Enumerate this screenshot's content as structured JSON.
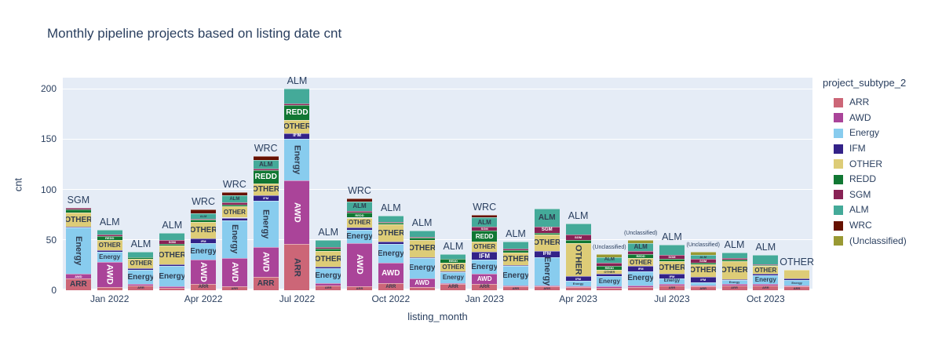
{
  "chart_data": {
    "type": "bar",
    "stacked": true,
    "title": "Monthly pipeline projects based on listing date cnt",
    "xlabel": "listing_month",
    "ylabel": "cnt",
    "ylim": [
      0,
      211
    ],
    "grid": true,
    "legend_position": "right",
    "legend_title": "project_subtype_2",
    "yticks": [
      0,
      50,
      100,
      150,
      200
    ],
    "xticks": [
      "Jan 2022",
      "Apr 2022",
      "Jul 2022",
      "Oct 2022",
      "Jan 2023",
      "Apr 2023",
      "Jul 2023",
      "Oct 2023"
    ],
    "series_keys": [
      "ARR",
      "AWD",
      "Energy",
      "IFM",
      "OTHER",
      "REDD",
      "SGM",
      "ALM",
      "WRC",
      "UNC"
    ],
    "series_meta": {
      "ARR": {
        "label": "ARR",
        "color": "#CC6677",
        "text_color": "#303c50"
      },
      "AWD": {
        "label": "AWD",
        "color": "#AA4499",
        "text_color": "#ffffff"
      },
      "Energy": {
        "label": "Energy",
        "color": "#88CCEE",
        "text_color": "#303c50"
      },
      "IFM": {
        "label": "IFM",
        "color": "#332288",
        "text_color": "#ffffff"
      },
      "OTHER": {
        "label": "OTHER",
        "color": "#DDCC77",
        "text_color": "#303c50"
      },
      "REDD": {
        "label": "REDD",
        "color": "#117733",
        "text_color": "#ffffff"
      },
      "SGM": {
        "label": "SGM",
        "color": "#882255",
        "text_color": "#ffffff"
      },
      "ALM": {
        "label": "ALM",
        "color": "#44AA99",
        "text_color": "#303c50"
      },
      "WRC": {
        "label": "WRC",
        "color": "#661100",
        "text_color": "#ffffff"
      },
      "UNC": {
        "label": "(Unclassified)",
        "color": "#999933",
        "text_color": "#303c50"
      }
    },
    "categories": [
      "Dec 2021",
      "Jan 2022",
      "Feb 2022",
      "Mar 2022",
      "Apr 2022",
      "May 2022",
      "Jun 2022",
      "Jul 2022",
      "Aug 2022",
      "Sep 2022",
      "Oct 2022",
      "Nov 2022",
      "Dec 2022",
      "Jan 2023",
      "Feb 2023",
      "Mar 2023",
      "Apr 2023",
      "May 2023",
      "Jun 2023",
      "Jul 2023",
      "Aug 2023",
      "Sep 2023",
      "Oct 2023",
      "Nov 2023"
    ],
    "bars": [
      {
        "month": "Dec 2021",
        "top_label": "SGM",
        "values": {
          "ARR": 12,
          "AWD": 4,
          "Energy": 46,
          "IFM": 1,
          "OTHER": 14,
          "REDD": 3,
          "SGM": 2
        }
      },
      {
        "month": "Jan 2022",
        "top_label": "ALM",
        "values": {
          "ARR": 3,
          "AWD": 25,
          "Energy": 10,
          "IFM": 2,
          "OTHER": 10,
          "REDD": 4,
          "SGM": 1,
          "ALM": 5
        }
      },
      {
        "month": "Feb 2022",
        "top_label": "ALM",
        "values": {
          "ARR": 5,
          "AWD": 1,
          "Energy": 14,
          "IFM": 2,
          "OTHER": 9,
          "REDD": 2,
          "ALM": 5
        }
      },
      {
        "month": "Mar 2022",
        "top_label": "ALM",
        "values": {
          "ARR": 2,
          "AWD": 2,
          "Energy": 20,
          "IFM": 2,
          "OTHER": 18,
          "REDD": 2,
          "SGM": 4,
          "ALM": 7
        }
      },
      {
        "month": "Apr 2022",
        "top_label": "WRC",
        "values": {
          "ARR": 6,
          "AWD": 24,
          "Energy": 17,
          "IFM": 4,
          "OTHER": 17,
          "REDD": 2,
          "SGM": 1,
          "ALM": 5,
          "WRC": 4
        }
      },
      {
        "month": "May 2022",
        "top_label": "WRC",
        "values": {
          "ARR": 4,
          "AWD": 28,
          "Energy": 37,
          "IFM": 3,
          "OTHER": 11,
          "REDD": 2,
          "SGM": 2,
          "ALM": 7,
          "WRC": 3
        }
      },
      {
        "month": "Jun 2022",
        "top_label": "WRC",
        "values": {
          "ARR": 13,
          "AWD": 30,
          "Energy": 46,
          "IFM": 5,
          "OTHER": 12,
          "REDD": 13,
          "SGM": 2,
          "ALM": 8,
          "WRC": 4
        }
      },
      {
        "month": "Jul 2022",
        "top_label": "ALM",
        "values": {
          "ARR": 46,
          "AWD": 63,
          "Energy": 41,
          "IFM": 6,
          "OTHER": 13,
          "REDD": 15,
          "SGM": 1,
          "ALM": 15
        }
      },
      {
        "month": "Aug 2022",
        "top_label": "ALM",
        "values": {
          "ARR": 5,
          "AWD": 2,
          "Energy": 15,
          "IFM": 1,
          "OTHER": 16,
          "REDD": 2,
          "SGM": 2,
          "ALM": 7
        }
      },
      {
        "month": "Sep 2022",
        "top_label": "WRC",
        "values": {
          "ARR": 4,
          "AWD": 43,
          "Energy": 13,
          "IFM": 2,
          "OTHER": 10,
          "REDD": 5,
          "SGM": 2,
          "ALM": 9,
          "WRC": 3
        }
      },
      {
        "month": "Oct 2022",
        "top_label": "ALM",
        "values": {
          "ARR": 7,
          "AWD": 20,
          "Energy": 19,
          "IFM": 2,
          "OTHER": 17,
          "REDD": 2,
          "SGM": 1,
          "ALM": 6
        }
      },
      {
        "month": "Nov 2022",
        "top_label": "ALM",
        "values": {
          "ARR": 3,
          "AWD": 9,
          "Energy": 20,
          "IFM": 1,
          "OTHER": 17,
          "REDD": 2,
          "SGM": 1,
          "ALM": 6
        }
      },
      {
        "month": "Dec 2022",
        "top_label": "ALM",
        "values": {
          "ARR": 6,
          "AWD": 1,
          "Energy": 11,
          "IFM": 1,
          "OTHER": 8,
          "REDD": 4,
          "ALM": 5
        }
      },
      {
        "month": "Jan 2023",
        "top_label": "WRC",
        "values": {
          "ARR": 6,
          "AWD": 10,
          "Energy": 14,
          "IFM": 8,
          "OTHER": 10,
          "REDD": 11,
          "SGM": 4,
          "ALM": 9,
          "WRC": 3
        }
      },
      {
        "month": "Feb 2023",
        "top_label": "ALM",
        "values": {
          "ARR": 4,
          "AWD": 1,
          "Energy": 19,
          "IFM": 1,
          "OTHER": 12,
          "REDD": 3,
          "SGM": 1,
          "ALM": 7
        }
      },
      {
        "month": "Mar 2023",
        "top_label": null,
        "values": {
          "ARR": 4,
          "AWD": 1,
          "Energy": 28,
          "IFM": 6,
          "OTHER": 16,
          "REDD": 2,
          "SGM": 6,
          "ALM": 18
        }
      },
      {
        "month": "Apr 2023",
        "top_label": "ALM",
        "values": {
          "ARR": 3,
          "AWD": 1,
          "Energy": 5,
          "IFM": 5,
          "OTHER": 33,
          "REDD": 3,
          "SGM": 5,
          "ALM": 11
        }
      },
      {
        "month": "May 2023",
        "top_label": "(Unclassified)",
        "values": {
          "ARR": 2,
          "AWD": 2,
          "Energy": 10,
          "IFM": 2,
          "OTHER": 4,
          "REDD": 4,
          "SGM": 3,
          "ALM": 6,
          "UNC": 3
        }
      },
      {
        "month": "Jun 2023",
        "top_label": "(Unclassified)",
        "values": {
          "ARR": 3,
          "AWD": 2,
          "Energy": 14,
          "IFM": 5,
          "OTHER": 8,
          "REDD": 4,
          "SGM": 3,
          "ALM": 8,
          "UNC": 3
        }
      },
      {
        "month": "Jul 2023",
        "top_label": "ALM",
        "values": {
          "ARR": 5,
          "AWD": 1,
          "Energy": 6,
          "IFM": 4,
          "OTHER": 13,
          "REDD": 2,
          "SGM": 4,
          "ALM": 10
        }
      },
      {
        "month": "Aug 2023",
        "top_label": "(Unclassified)",
        "values": {
          "ARR": 4,
          "AWD": 1,
          "Energy": 3,
          "IFM": 5,
          "OTHER": 13,
          "REDD": 1,
          "SGM": 4,
          "ALM": 4,
          "UNC": 3
        }
      },
      {
        "month": "Sep 2023",
        "top_label": "ALM",
        "values": {
          "ARR": 5,
          "AWD": 1,
          "Energy": 4,
          "IFM": 1,
          "OTHER": 18,
          "REDD": 1,
          "SGM": 2,
          "ALM": 5
        }
      },
      {
        "month": "Oct 2023",
        "top_label": "ALM",
        "values": {
          "ARR": 5,
          "AWD": 1,
          "Energy": 9,
          "IFM": 1,
          "OTHER": 8,
          "REDD": 1,
          "SGM": 1,
          "ALM": 9
        }
      },
      {
        "month": "Nov 2023",
        "top_label": "OTHER",
        "values": {
          "ARR": 4,
          "AWD": 1,
          "Energy": 5,
          "IFM": 2,
          "OTHER": 8
        }
      }
    ]
  },
  "colors": {
    "plot_background": "#e5ecf6",
    "paper_background": "#ffffff",
    "grid": "#ffffff",
    "text": "#2a3f5f"
  }
}
